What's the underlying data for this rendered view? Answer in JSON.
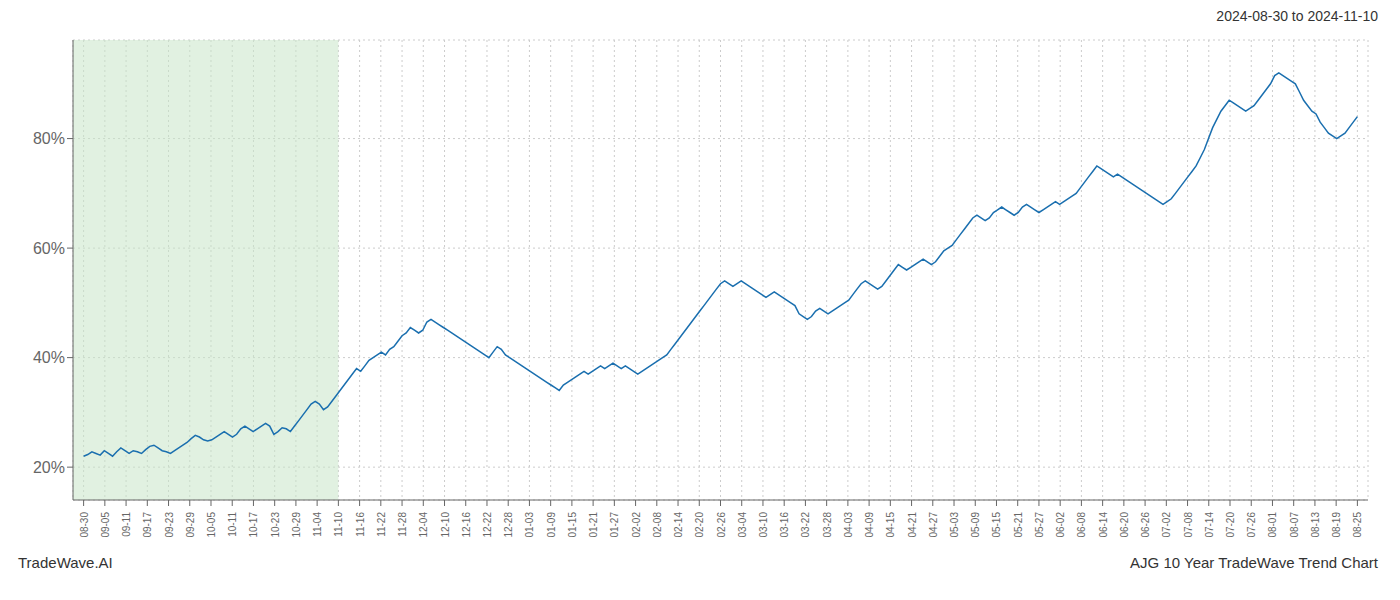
{
  "chart_data": {
    "type": "line",
    "title": "2024-08-30 to 2024-11-10",
    "annotations": [
      "TradeWave.AI",
      "AJG 10 Year TradeWave Trend Chart"
    ],
    "color": "#1a6faf",
    "grid": true,
    "shaded": {
      "from": -2.5667,
      "to": 61.6,
      "color": "#c8e6c8"
    },
    "ylim": [
      14,
      98
    ],
    "yticks": [
      {
        "value": 20,
        "label": "20%"
      },
      {
        "value": 40,
        "label": "40%"
      },
      {
        "value": 60,
        "label": "60%"
      },
      {
        "value": 80,
        "label": "80%"
      }
    ],
    "xlim": [
      -2.5667,
      310.5667
    ],
    "xticks": [
      {
        "value": 0,
        "label": "08-30"
      },
      {
        "value": 5.1333,
        "label": "09-05"
      },
      {
        "value": 10.2667,
        "label": "09-11"
      },
      {
        "value": 15.4,
        "label": "09-17"
      },
      {
        "value": 20.5333,
        "label": "09-23"
      },
      {
        "value": 25.6667,
        "label": "09-29"
      },
      {
        "value": 30.8,
        "label": "10-05"
      },
      {
        "value": 35.9333,
        "label": "10-11"
      },
      {
        "value": 41.0667,
        "label": "10-17"
      },
      {
        "value": 46.2,
        "label": "10-23"
      },
      {
        "value": 51.3333,
        "label": "10-29"
      },
      {
        "value": 56.4667,
        "label": "11-04"
      },
      {
        "value": 61.6,
        "label": "11-10"
      },
      {
        "value": 66.7333,
        "label": "11-16"
      },
      {
        "value": 71.8667,
        "label": "11-22"
      },
      {
        "value": 77,
        "label": "11-28"
      },
      {
        "value": 82.1333,
        "label": "12-04"
      },
      {
        "value": 87.2667,
        "label": "12-10"
      },
      {
        "value": 92.4,
        "label": "12-16"
      },
      {
        "value": 97.5333,
        "label": "12-22"
      },
      {
        "value": 102.6667,
        "label": "12-28"
      },
      {
        "value": 107.8,
        "label": "01-03"
      },
      {
        "value": 112.9333,
        "label": "01-09"
      },
      {
        "value": 118.0667,
        "label": "01-15"
      },
      {
        "value": 123.2,
        "label": "01-21"
      },
      {
        "value": 128.3333,
        "label": "01-27"
      },
      {
        "value": 133.4667,
        "label": "02-02"
      },
      {
        "value": 138.6,
        "label": "02-08"
      },
      {
        "value": 143.7333,
        "label": "02-14"
      },
      {
        "value": 148.8667,
        "label": "02-20"
      },
      {
        "value": 154,
        "label": "02-26"
      },
      {
        "value": 159.1333,
        "label": "03-04"
      },
      {
        "value": 164.2667,
        "label": "03-10"
      },
      {
        "value": 169.4,
        "label": "03-16"
      },
      {
        "value": 174.5333,
        "label": "03-22"
      },
      {
        "value": 179.6667,
        "label": "03-28"
      },
      {
        "value": 184.8,
        "label": "04-03"
      },
      {
        "value": 189.9333,
        "label": "04-09"
      },
      {
        "value": 195.0667,
        "label": "04-15"
      },
      {
        "value": 200.2,
        "label": "04-21"
      },
      {
        "value": 205.3333,
        "label": "04-27"
      },
      {
        "value": 210.4667,
        "label": "05-03"
      },
      {
        "value": 215.6,
        "label": "05-09"
      },
      {
        "value": 220.7333,
        "label": "05-15"
      },
      {
        "value": 225.8667,
        "label": "05-21"
      },
      {
        "value": 231,
        "label": "05-27"
      },
      {
        "value": 236.1333,
        "label": "06-02"
      },
      {
        "value": 241.2667,
        "label": "06-08"
      },
      {
        "value": 246.4,
        "label": "06-14"
      },
      {
        "value": 251.5333,
        "label": "06-20"
      },
      {
        "value": 256.6667,
        "label": "06-26"
      },
      {
        "value": 261.8,
        "label": "07-02"
      },
      {
        "value": 266.9333,
        "label": "07-08"
      },
      {
        "value": 272.0667,
        "label": "07-14"
      },
      {
        "value": 277.2,
        "label": "07-20"
      },
      {
        "value": 282.3333,
        "label": "07-26"
      },
      {
        "value": 287.4667,
        "label": "08-01"
      },
      {
        "value": 292.6,
        "label": "08-07"
      },
      {
        "value": 297.7333,
        "label": "08-13"
      },
      {
        "value": 302.8667,
        "label": "08-19"
      },
      {
        "value": 308,
        "label": "08-25"
      }
    ],
    "x": [
      0,
      1,
      2,
      3,
      4,
      5,
      6,
      7,
      8,
      9,
      10,
      11,
      12,
      13,
      14,
      15,
      16,
      17,
      18,
      19,
      20,
      21,
      22,
      23,
      24,
      25,
      26,
      27,
      28,
      29,
      30,
      31,
      32,
      33,
      34,
      35,
      36,
      37,
      38,
      39,
      40,
      41,
      42,
      43,
      44,
      45,
      46,
      47,
      48,
      49,
      50,
      51,
      52,
      53,
      54,
      55,
      56,
      57,
      58,
      59,
      60,
      61,
      62,
      63,
      64,
      65,
      66,
      67,
      68,
      69,
      70,
      71,
      72,
      73,
      74,
      75,
      76,
      77,
      78,
      79,
      80,
      81,
      82,
      83,
      84,
      85,
      86,
      87,
      88,
      89,
      90,
      91,
      92,
      93,
      94,
      95,
      96,
      97,
      98,
      99,
      100,
      101,
      102,
      103,
      104,
      105,
      106,
      107,
      108,
      109,
      110,
      111,
      112,
      113,
      114,
      115,
      116,
      117,
      118,
      119,
      120,
      121,
      122,
      123,
      124,
      125,
      126,
      127,
      128,
      129,
      130,
      131,
      132,
      133,
      134,
      135,
      136,
      137,
      138,
      139,
      140,
      141,
      142,
      143,
      144,
      145,
      146,
      147,
      148,
      149,
      150,
      151,
      152,
      153,
      154,
      155,
      156,
      157,
      158,
      159,
      160,
      161,
      162,
      163,
      164,
      165,
      166,
      167,
      168,
      169,
      170,
      171,
      172,
      173,
      174,
      175,
      176,
      177,
      178,
      179,
      180,
      181,
      182,
      183,
      184,
      185,
      186,
      187,
      188,
      189,
      190,
      191,
      192,
      193,
      194,
      195,
      196,
      197,
      198,
      199,
      200,
      201,
      202,
      203,
      204,
      205,
      206,
      207,
      208,
      209,
      210,
      211,
      212,
      213,
      214,
      215,
      216,
      217,
      218,
      219,
      220,
      221,
      222,
      223,
      224,
      225,
      226,
      227,
      228,
      229,
      230,
      231,
      232,
      233,
      234,
      235,
      236,
      237,
      238,
      239,
      240,
      241,
      242,
      243,
      244,
      245,
      246,
      247,
      248,
      249,
      250,
      251,
      252,
      253,
      254,
      255,
      256,
      257,
      258,
      259,
      260,
      261,
      262,
      263,
      264,
      265,
      266,
      267,
      268,
      269,
      270,
      271,
      272,
      273,
      274,
      275,
      276,
      277,
      278,
      279,
      280,
      281,
      282,
      283,
      284,
      285,
      286,
      287,
      288,
      289,
      290,
      291,
      292,
      293,
      294,
      295,
      296,
      297,
      298,
      299,
      300,
      301,
      302,
      303,
      304,
      305,
      306,
      307,
      308
    ],
    "values": [
      22.0,
      22.3,
      22.8,
      22.5,
      22.2,
      23.0,
      22.5,
      22.0,
      22.8,
      23.5,
      23.0,
      22.5,
      23.0,
      22.8,
      22.5,
      23.2,
      23.8,
      24.0,
      23.5,
      23.0,
      22.8,
      22.5,
      23.0,
      23.5,
      24.0,
      24.5,
      25.2,
      25.8,
      25.5,
      25.0,
      24.8,
      25.0,
      25.5,
      26.0,
      26.5,
      26.0,
      25.5,
      26.0,
      27.0,
      27.5,
      27.0,
      26.5,
      27.0,
      27.5,
      28.0,
      27.5,
      26.0,
      26.5,
      27.2,
      27.0,
      26.5,
      27.5,
      28.5,
      29.5,
      30.5,
      31.5,
      32.0,
      31.5,
      30.5,
      31.0,
      32.0,
      33.0,
      34.0,
      35.0,
      36.0,
      37.0,
      38.0,
      37.5,
      38.5,
      39.5,
      40.0,
      40.5,
      41.0,
      40.5,
      41.5,
      42.0,
      43.0,
      44.0,
      44.5,
      45.5,
      45.0,
      44.5,
      45.0,
      46.5,
      47.0,
      46.5,
      46.0,
      45.5,
      45.0,
      44.5,
      44.0,
      43.5,
      43.0,
      42.5,
      42.0,
      41.5,
      41.0,
      40.5,
      40.0,
      41.0,
      42.0,
      41.5,
      40.5,
      40.0,
      39.5,
      39.0,
      38.5,
      38.0,
      37.5,
      37.0,
      36.5,
      36.0,
      35.5,
      35.0,
      34.5,
      34.0,
      35.0,
      35.5,
      36.0,
      36.5,
      37.0,
      37.5,
      37.0,
      37.5,
      38.0,
      38.5,
      38.0,
      38.5,
      39.0,
      38.5,
      38.0,
      38.5,
      38.0,
      37.5,
      37.0,
      37.5,
      38.0,
      38.5,
      39.0,
      39.5,
      40.0,
      40.5,
      41.5,
      42.5,
      43.5,
      44.5,
      45.5,
      46.5,
      47.5,
      48.5,
      49.5,
      50.5,
      51.5,
      52.5,
      53.5,
      54.0,
      53.5,
      53.0,
      53.5,
      54.0,
      53.5,
      53.0,
      52.5,
      52.0,
      51.5,
      51.0,
      51.5,
      52.0,
      51.5,
      51.0,
      50.5,
      50.0,
      49.5,
      48.0,
      47.5,
      47.0,
      47.5,
      48.5,
      49.0,
      48.5,
      48.0,
      48.5,
      49.0,
      49.5,
      50.0,
      50.5,
      51.5,
      52.5,
      53.5,
      54.0,
      53.5,
      53.0,
      52.5,
      53.0,
      54.0,
      55.0,
      56.0,
      57.0,
      56.5,
      56.0,
      56.5,
      57.0,
      57.5,
      58.0,
      57.5,
      57.0,
      57.5,
      58.5,
      59.5,
      60.0,
      60.5,
      61.5,
      62.5,
      63.5,
      64.5,
      65.5,
      66.0,
      65.5,
      65.0,
      65.5,
      66.5,
      67.0,
      67.5,
      67.0,
      66.5,
      66.0,
      66.5,
      67.5,
      68.0,
      67.5,
      67.0,
      66.5,
      67.0,
      67.5,
      68.0,
      68.5,
      68.0,
      68.5,
      69.0,
      69.5,
      70.0,
      71.0,
      72.0,
      73.0,
      74.0,
      75.0,
      74.5,
      74.0,
      73.5,
      73.0,
      73.5,
      73.0,
      72.5,
      72.0,
      71.5,
      71.0,
      70.5,
      70.0,
      69.5,
      69.0,
      68.5,
      68.0,
      68.5,
      69.0,
      70.0,
      71.0,
      72.0,
      73.0,
      74.0,
      75.0,
      76.5,
      78.0,
      80.0,
      82.0,
      83.5,
      85.0,
      86.0,
      87.0,
      86.5,
      86.0,
      85.5,
      85.0,
      85.5,
      86.0,
      87.0,
      88.0,
      89.0,
      90.0,
      91.5,
      92.0,
      91.5,
      91.0,
      90.5,
      90.0,
      88.5,
      87.0,
      86.0,
      85.0,
      84.5,
      83.0,
      82.0,
      81.0,
      80.5,
      80.0,
      80.5,
      81.0,
      82.0,
      83.0,
      84.0
    ]
  }
}
